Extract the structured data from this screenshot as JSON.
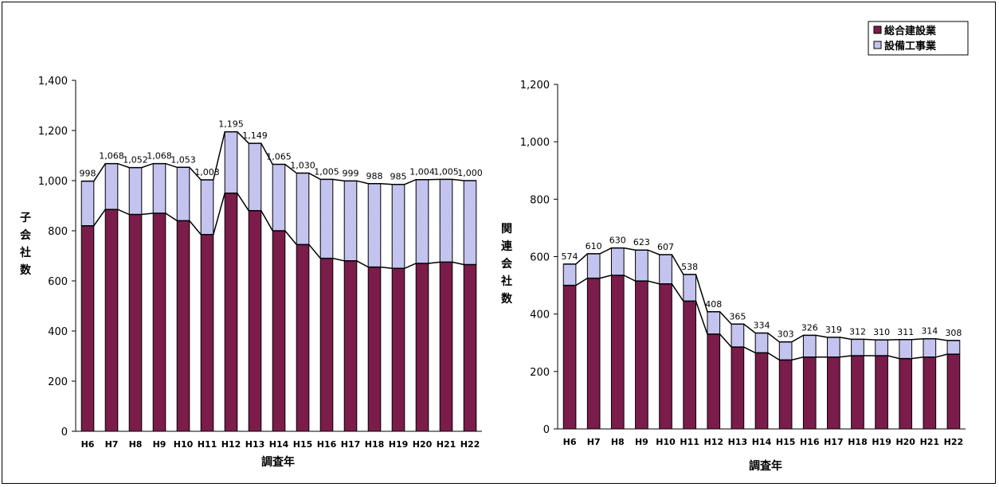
{
  "legend": {
    "placement": "top-right",
    "items": [
      {
        "label": "総合建設業",
        "color": "#7b1c4a"
      },
      {
        "label": "設備工事業",
        "color": "#c8c8f2"
      }
    ]
  },
  "colors": {
    "general": "#7b1c4a",
    "equipment": "#c8c8f2",
    "outline": "#000000"
  },
  "chart_data": [
    {
      "type": "bar",
      "stacked": true,
      "categories": [
        "H6",
        "H7",
        "H8",
        "H9",
        "H10",
        "H11",
        "H12",
        "H13",
        "H14",
        "H15",
        "H16",
        "H17",
        "H18",
        "H19",
        "H20",
        "H21",
        "H22"
      ],
      "series": [
        {
          "name": "総合建設業",
          "values": [
            820,
            885,
            865,
            870,
            840,
            785,
            950,
            880,
            800,
            745,
            690,
            680,
            655,
            650,
            670,
            675,
            665
          ]
        },
        {
          "name": "設備工事業",
          "values": [
            178,
            183,
            187,
            198,
            213,
            218,
            245,
            269,
            265,
            285,
            315,
            319,
            333,
            335,
            334,
            330,
            335
          ]
        }
      ],
      "totals": [
        998,
        1068,
        1052,
        1068,
        1053,
        1003,
        1195,
        1149,
        1065,
        1030,
        1005,
        999,
        988,
        985,
        1004,
        1005,
        1000
      ],
      "total_labels": [
        "998",
        "1,068",
        "1,052",
        "1,068",
        "1,053",
        "1,003",
        "1,195",
        "1,149",
        "1,065",
        "1,030",
        "1,005",
        "999",
        "988",
        "985",
        "1,004",
        "1,005",
        "1,000"
      ],
      "xlabel": "調査年",
      "ylabel": "子会社数",
      "ylim": [
        0,
        1400
      ],
      "yticks": [
        0,
        200,
        400,
        600,
        800,
        1000,
        1200,
        1400
      ],
      "ytick_labels": [
        "0",
        "200",
        "400",
        "600",
        "800",
        "1,000",
        "1,200",
        "1,400"
      ],
      "grid": false
    },
    {
      "type": "bar",
      "stacked": true,
      "categories": [
        "H6",
        "H7",
        "H8",
        "H9",
        "H10",
        "H11",
        "H12",
        "H13",
        "H14",
        "H15",
        "H16",
        "H17",
        "H18",
        "H19",
        "H20",
        "H21",
        "H22"
      ],
      "series": [
        {
          "name": "総合建設業",
          "values": [
            500,
            525,
            535,
            515,
            505,
            445,
            330,
            285,
            265,
            240,
            250,
            250,
            255,
            255,
            245,
            250,
            260
          ]
        },
        {
          "name": "設備工事業",
          "values": [
            74,
            85,
            95,
            108,
            102,
            93,
            78,
            80,
            69,
            63,
            76,
            69,
            57,
            55,
            66,
            64,
            48
          ]
        }
      ],
      "totals": [
        574,
        610,
        630,
        623,
        607,
        538,
        408,
        365,
        334,
        303,
        326,
        319,
        312,
        310,
        311,
        314,
        308
      ],
      "total_labels": [
        "574",
        "610",
        "630",
        "623",
        "607",
        "538",
        "408",
        "365",
        "334",
        "303",
        "326",
        "319",
        "312",
        "310",
        "311",
        "314",
        "308"
      ],
      "xlabel": "調査年",
      "ylabel": "関連会社数",
      "ylim": [
        0,
        1200
      ],
      "yticks": [
        0,
        200,
        400,
        600,
        800,
        1000,
        1200
      ],
      "ytick_labels": [
        "0",
        "200",
        "400",
        "600",
        "800",
        "1,000",
        "1,200"
      ],
      "grid": false
    }
  ]
}
